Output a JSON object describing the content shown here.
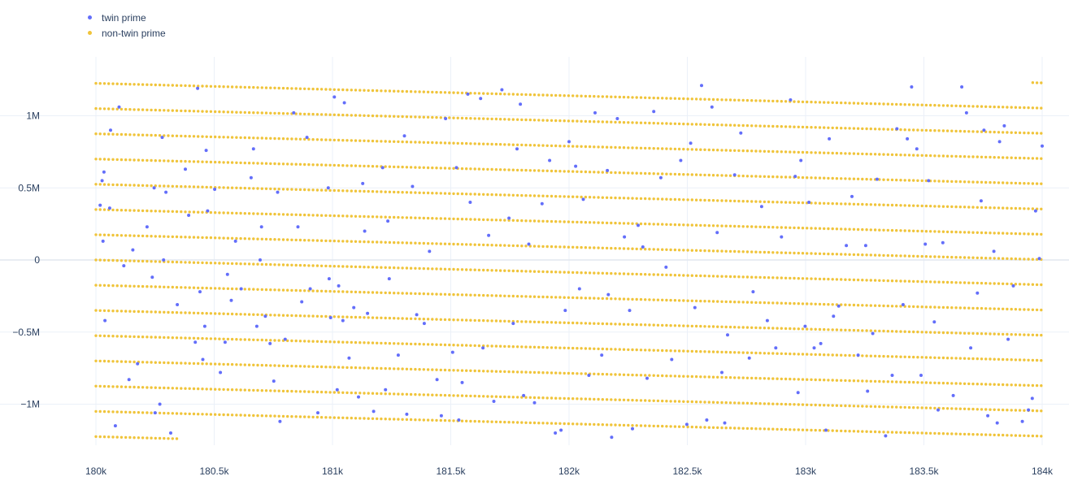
{
  "chart_data": {
    "type": "scatter",
    "title": "",
    "xlabel": "",
    "ylabel": "",
    "xlim": [
      180000,
      184000
    ],
    "ylim": [
      -1350000,
      1400000
    ],
    "grid": true,
    "legend_position": "top-left",
    "x_ticks": [
      180000,
      180500,
      181000,
      181500,
      182000,
      182500,
      183000,
      183500,
      184000
    ],
    "x_tick_labels": [
      "180k",
      "180.5k",
      "181k",
      "181.5k",
      "182k",
      "182.5k",
      "183k",
      "183.5k",
      "184k"
    ],
    "y_ticks": [
      1000000,
      500000,
      0,
      -500000,
      -1000000
    ],
    "y_tick_labels": [
      "1M",
      "0.5M",
      "0",
      "−0.5M",
      "−1M"
    ],
    "series": [
      {
        "name": "twin prime",
        "color": "#636efa",
        "points": [
          [
            180018,
            380000
          ],
          [
            180026,
            550000
          ],
          [
            180030,
            130000
          ],
          [
            180034,
            610000
          ],
          [
            180038,
            -420000
          ],
          [
            180058,
            360000
          ],
          [
            180062,
            900000
          ],
          [
            180082,
            -1150000
          ],
          [
            180098,
            1060000
          ],
          [
            180118,
            -40000
          ],
          [
            180140,
            -830000
          ],
          [
            180156,
            70000
          ],
          [
            180176,
            -720000
          ],
          [
            180216,
            230000
          ],
          [
            180238,
            -120000
          ],
          [
            180246,
            500000
          ],
          [
            180250,
            -1060000
          ],
          [
            180270,
            -1000000
          ],
          [
            180280,
            850000
          ],
          [
            180286,
            0
          ],
          [
            180296,
            470000
          ],
          [
            180316,
            -1200000
          ],
          [
            180344,
            -310000
          ],
          [
            180378,
            630000
          ],
          [
            180392,
            310000
          ],
          [
            180420,
            -570000
          ],
          [
            180430,
            1190000
          ],
          [
            180440,
            -220000
          ],
          [
            180452,
            -690000
          ],
          [
            180460,
            -460000
          ],
          [
            180466,
            760000
          ],
          [
            180472,
            340000
          ],
          [
            180502,
            490000
          ],
          [
            180526,
            -780000
          ],
          [
            180546,
            -570000
          ],
          [
            180556,
            -100000
          ],
          [
            180572,
            -280000
          ],
          [
            180590,
            130000
          ],
          [
            180614,
            -200000
          ],
          [
            180656,
            570000
          ],
          [
            180666,
            770000
          ],
          [
            180680,
            -460000
          ],
          [
            180694,
            0
          ],
          [
            180700,
            230000
          ],
          [
            180716,
            -390000
          ],
          [
            180736,
            -580000
          ],
          [
            180752,
            -840000
          ],
          [
            180768,
            470000
          ],
          [
            180778,
            -1120000
          ],
          [
            180800,
            -550000
          ],
          [
            180836,
            1020000
          ],
          [
            180854,
            230000
          ],
          [
            180870,
            -290000
          ],
          [
            180892,
            850000
          ],
          [
            180906,
            -200000
          ],
          [
            180938,
            -1060000
          ],
          [
            180982,
            500000
          ],
          [
            180986,
            -130000
          ],
          [
            180992,
            -400000
          ],
          [
            181008,
            1130000
          ],
          [
            181020,
            -900000
          ],
          [
            181026,
            -180000
          ],
          [
            181044,
            -420000
          ],
          [
            181050,
            1090000
          ],
          [
            181070,
            -680000
          ],
          [
            181090,
            -330000
          ],
          [
            181110,
            -950000
          ],
          [
            181128,
            530000
          ],
          [
            181136,
            200000
          ],
          [
            181148,
            -370000
          ],
          [
            181174,
            -1050000
          ],
          [
            181212,
            640000
          ],
          [
            181224,
            -900000
          ],
          [
            181234,
            270000
          ],
          [
            181240,
            -130000
          ],
          [
            181278,
            -660000
          ],
          [
            181304,
            860000
          ],
          [
            181314,
            -1070000
          ],
          [
            181338,
            510000
          ],
          [
            181356,
            -380000
          ],
          [
            181388,
            -440000
          ],
          [
            181410,
            60000
          ],
          [
            181442,
            -830000
          ],
          [
            181460,
            -1080000
          ],
          [
            181478,
            980000
          ],
          [
            181508,
            -640000
          ],
          [
            181524,
            640000
          ],
          [
            181534,
            -1110000
          ],
          [
            181548,
            -850000
          ],
          [
            181572,
            1150000
          ],
          [
            181582,
            400000
          ],
          [
            181626,
            1120000
          ],
          [
            181636,
            -610000
          ],
          [
            181660,
            170000
          ],
          [
            181682,
            -980000
          ],
          [
            181716,
            1180000
          ],
          [
            181746,
            290000
          ],
          [
            181764,
            -440000
          ],
          [
            181780,
            770000
          ],
          [
            181794,
            1080000
          ],
          [
            181808,
            -940000
          ],
          [
            181830,
            110000
          ],
          [
            181854,
            -990000
          ],
          [
            181886,
            390000
          ],
          [
            181918,
            690000
          ],
          [
            181942,
            -1200000
          ],
          [
            181966,
            -1180000
          ],
          [
            181984,
            -350000
          ],
          [
            182000,
            820000
          ],
          [
            182028,
            650000
          ],
          [
            182044,
            -200000
          ],
          [
            182060,
            420000
          ],
          [
            182084,
            -800000
          ],
          [
            182110,
            1020000
          ],
          [
            182138,
            -660000
          ],
          [
            182162,
            620000
          ],
          [
            182166,
            -240000
          ],
          [
            182180,
            -1230000
          ],
          [
            182204,
            980000
          ],
          [
            182234,
            160000
          ],
          [
            182256,
            -350000
          ],
          [
            182268,
            -1170000
          ],
          [
            182292,
            240000
          ],
          [
            182312,
            90000
          ],
          [
            182330,
            -820000
          ],
          [
            182358,
            1030000
          ],
          [
            182388,
            570000
          ],
          [
            182410,
            -50000
          ],
          [
            182434,
            -690000
          ],
          [
            182472,
            690000
          ],
          [
            182498,
            -1140000
          ],
          [
            182514,
            810000
          ],
          [
            182532,
            -330000
          ],
          [
            182560,
            1210000
          ],
          [
            182582,
            -1110000
          ],
          [
            182604,
            1060000
          ],
          [
            182626,
            190000
          ],
          [
            182646,
            -780000
          ],
          [
            182658,
            -1130000
          ],
          [
            182670,
            -520000
          ],
          [
            182700,
            590000
          ],
          [
            182726,
            880000
          ],
          [
            182762,
            -680000
          ],
          [
            182778,
            -220000
          ],
          [
            182814,
            370000
          ],
          [
            182838,
            -420000
          ],
          [
            182874,
            -610000
          ],
          [
            182898,
            160000
          ],
          [
            182936,
            1110000
          ],
          [
            182956,
            580000
          ],
          [
            182968,
            -920000
          ],
          [
            182980,
            690000
          ],
          [
            182998,
            -460000
          ],
          [
            183014,
            400000
          ],
          [
            183036,
            -610000
          ],
          [
            183064,
            -580000
          ],
          [
            183086,
            -1180000
          ],
          [
            183100,
            840000
          ],
          [
            183118,
            -390000
          ],
          [
            183140,
            -320000
          ],
          [
            183172,
            100000
          ],
          [
            183196,
            440000
          ],
          [
            183222,
            -660000
          ],
          [
            183254,
            100000
          ],
          [
            183262,
            -910000
          ],
          [
            183284,
            -510000
          ],
          [
            183302,
            560000
          ],
          [
            183338,
            -1220000
          ],
          [
            183366,
            -800000
          ],
          [
            183386,
            910000
          ],
          [
            183412,
            -310000
          ],
          [
            183430,
            840000
          ],
          [
            183448,
            1200000
          ],
          [
            183470,
            770000
          ],
          [
            183488,
            -800000
          ],
          [
            183506,
            110000
          ],
          [
            183520,
            550000
          ],
          [
            183544,
            -430000
          ],
          [
            183560,
            -1040000
          ],
          [
            183580,
            120000
          ],
          [
            183624,
            -940000
          ],
          [
            183660,
            1200000
          ],
          [
            183680,
            1020000
          ],
          [
            183698,
            -610000
          ],
          [
            183726,
            -230000
          ],
          [
            183742,
            410000
          ],
          [
            183754,
            900000
          ],
          [
            183770,
            -1080000
          ],
          [
            183796,
            60000
          ],
          [
            183810,
            -1130000
          ],
          [
            183820,
            820000
          ],
          [
            183840,
            930000
          ],
          [
            183856,
            -550000
          ],
          [
            183878,
            -180000
          ],
          [
            183916,
            -1120000
          ],
          [
            183942,
            -1040000
          ],
          [
            183958,
            -960000
          ],
          [
            183972,
            340000
          ],
          [
            183988,
            10000
          ],
          [
            184000,
            790000
          ]
        ]
      },
      {
        "name": "non-twin prime",
        "color": "#f0c43a"
      }
    ]
  }
}
